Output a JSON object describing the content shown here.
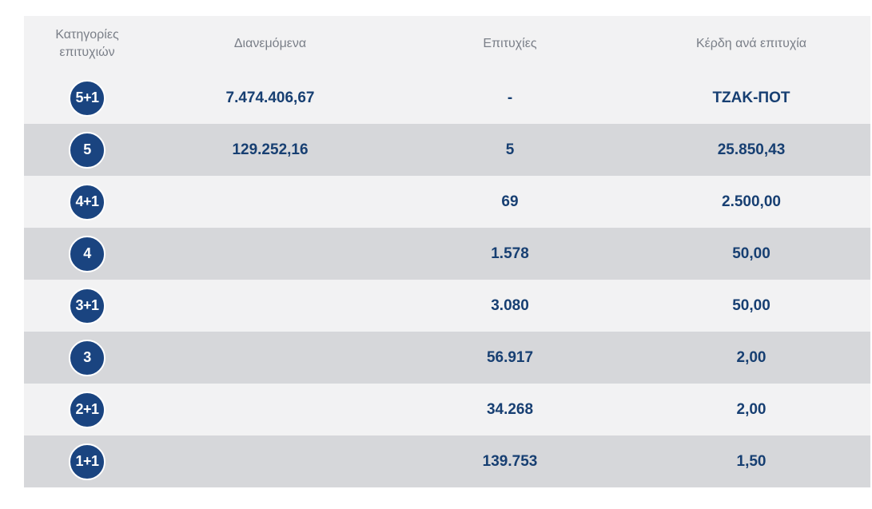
{
  "headers": {
    "categories": "Κατηγορίες επιτυχιών",
    "distributed": "Διανεμόμενα",
    "winners": "Επιτυχίες",
    "prize": "Κέρδη ανά επιτυχία"
  },
  "rows": [
    {
      "category": "5+1",
      "distributed": "7.474.406,67",
      "winners": "-",
      "prize": "ΤΖΑΚ-ΠΟΤ"
    },
    {
      "category": "5",
      "distributed": "129.252,16",
      "winners": "5",
      "prize": "25.850,43"
    },
    {
      "category": "4+1",
      "distributed": "",
      "winners": "69",
      "prize": "2.500,00"
    },
    {
      "category": "4",
      "distributed": "",
      "winners": "1.578",
      "prize": "50,00"
    },
    {
      "category": "3+1",
      "distributed": "",
      "winners": "3.080",
      "prize": "50,00"
    },
    {
      "category": "3",
      "distributed": "",
      "winners": "56.917",
      "prize": "2,00"
    },
    {
      "category": "2+1",
      "distributed": "",
      "winners": "34.268",
      "prize": "2,00"
    },
    {
      "category": "1+1",
      "distributed": "",
      "winners": "139.753",
      "prize": "1,50"
    }
  ],
  "colors": {
    "badge": "#1a4480",
    "value_text": "#173f72",
    "header_text": "#7a7f88",
    "row_light": "#f2f2f3",
    "row_dark": "#d6d7da"
  }
}
